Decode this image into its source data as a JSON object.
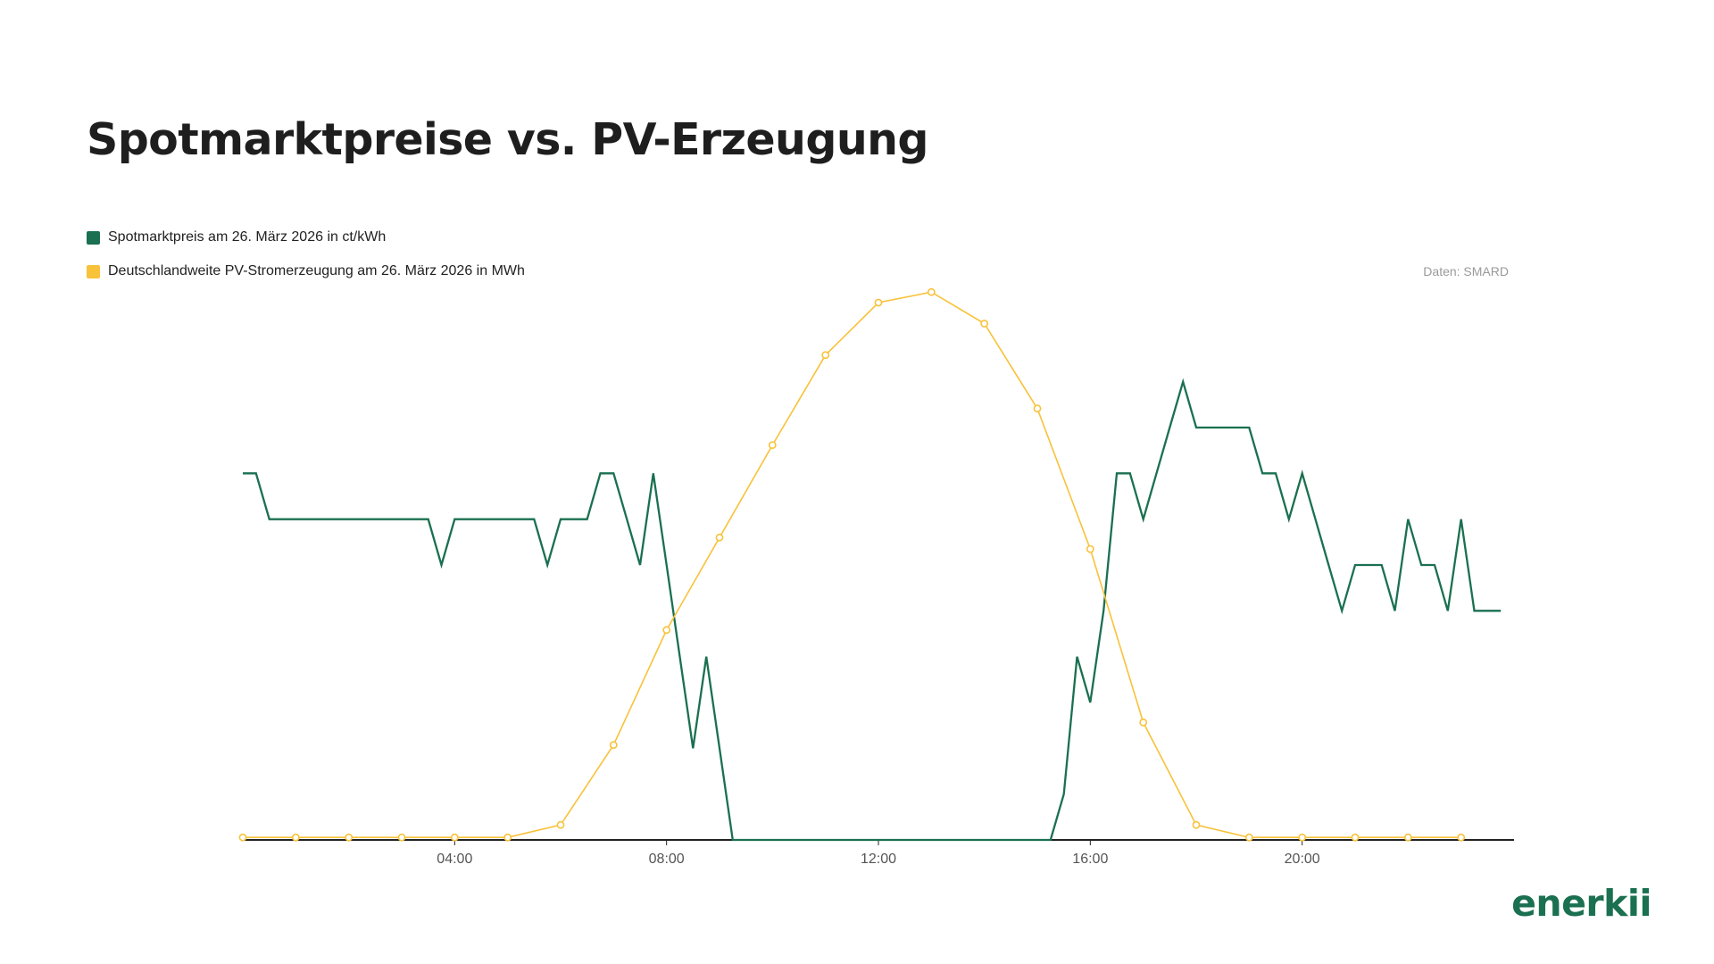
{
  "page": {
    "title": "Spotmarktpreise vs. PV-Erzeugung",
    "source": "Daten: SMARD",
    "logo": "enerkii"
  },
  "colors": {
    "price": "#1a7050",
    "pv": "#f8c23a",
    "axis": "#222222",
    "logo": "#1a7050"
  },
  "chart_data": {
    "type": "line",
    "title": "Spotmarktpreise vs. PV-Erzeugung",
    "xlabel": "",
    "ylabel": "",
    "grid": false,
    "legend_position": "top-left",
    "xlim": [
      0,
      24
    ],
    "x_ticks": [
      4,
      8,
      12,
      16,
      20
    ],
    "x_tick_labels": [
      "04:00",
      "08:00",
      "12:00",
      "16:00",
      "20:00"
    ],
    "series": [
      {
        "name": "Spotmarktpreis am 26. März 2026 in ct/kWh",
        "color": "#1a7050",
        "marker": false,
        "ylim": [
          0,
          12
        ],
        "x": [
          0,
          0.25,
          0.5,
          0.75,
          1,
          1.25,
          1.5,
          1.75,
          2,
          2.25,
          2.5,
          2.75,
          3,
          3.25,
          3.5,
          3.75,
          4,
          4.25,
          4.5,
          4.75,
          5,
          5.25,
          5.5,
          5.75,
          6,
          6.25,
          6.5,
          6.75,
          7,
          7.25,
          7.5,
          7.75,
          8,
          8.25,
          8.5,
          8.75,
          9,
          9.25,
          9.5,
          9.75,
          10,
          10.25,
          10.5,
          10.75,
          11,
          11.25,
          11.5,
          11.75,
          12,
          12.25,
          12.5,
          12.75,
          13,
          13.25,
          13.5,
          13.75,
          14,
          14.25,
          14.5,
          14.75,
          15,
          15.25,
          15.5,
          15.75,
          16,
          16.25,
          16.5,
          16.75,
          17,
          17.25,
          17.5,
          17.75,
          18,
          18.25,
          18.5,
          18.75,
          19,
          19.25,
          19.5,
          19.75,
          20,
          20.25,
          20.5,
          20.75,
          21,
          21.25,
          21.5,
          21.75,
          22,
          22.25,
          22.5,
          22.75,
          23,
          23.25,
          23.5,
          23.75
        ],
        "values": [
          8,
          8,
          7,
          7,
          7,
          7,
          7,
          7,
          7,
          7,
          7,
          7,
          7,
          7,
          7,
          6,
          7,
          7,
          7,
          7,
          7,
          7,
          7,
          6,
          7,
          7,
          7,
          8,
          8,
          7,
          6,
          8,
          6,
          4,
          2,
          4,
          2,
          0,
          0,
          0,
          0,
          0,
          0,
          0,
          0,
          0,
          0,
          0,
          0,
          0,
          0,
          0,
          0,
          0,
          0,
          0,
          0,
          0,
          0,
          0,
          0,
          0,
          1,
          4,
          3,
          5,
          8,
          8,
          7,
          8,
          9,
          10,
          9,
          9,
          9,
          9,
          9,
          8,
          8,
          7,
          8,
          7,
          6,
          5,
          6,
          6,
          6,
          5,
          7,
          6,
          6,
          5,
          7,
          5,
          5,
          5
        ]
      },
      {
        "name": "Deutschlandweite PV-Stromerzeugung am 26. März 2026 in MWh",
        "color": "#f8c23a",
        "marker": true,
        "ylim": [
          0,
          11
        ],
        "x": [
          0,
          1,
          2,
          3,
          4,
          5,
          6,
          7,
          8,
          9,
          10,
          11,
          12,
          13,
          14,
          15,
          16,
          17,
          18,
          19,
          20,
          21,
          22,
          23
        ],
        "values": [
          0.05,
          0.05,
          0.05,
          0.05,
          0.05,
          0.05,
          0.3,
          1.9,
          4.2,
          6.05,
          7.9,
          9.7,
          10.75,
          10.96,
          10.33,
          8.63,
          5.82,
          2.35,
          0.3,
          0.05,
          0.05,
          0.05,
          0.05,
          0.05
        ]
      }
    ]
  }
}
